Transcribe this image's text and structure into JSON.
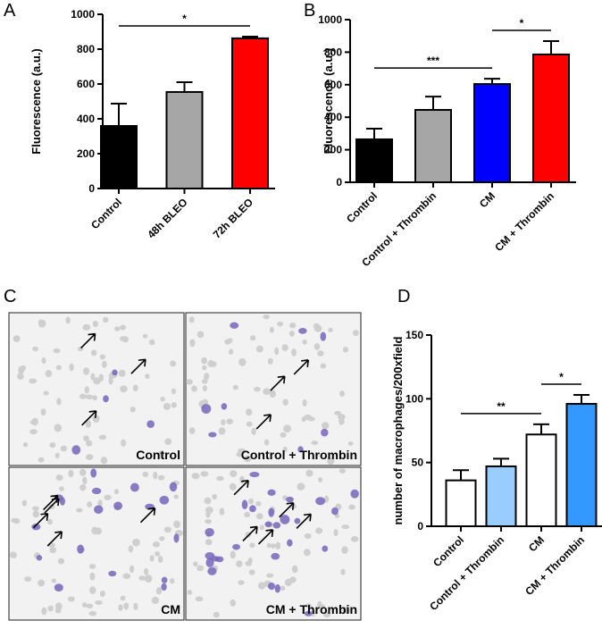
{
  "chart_data": [
    {
      "type": "bar",
      "panel": "A",
      "ylabel": "Fluorescence (a.u.)",
      "categories": [
        "Control",
        "48h BLEO",
        "72h BLEO"
      ],
      "values": [
        359,
        554,
        862
      ],
      "errors": [
        128,
        56,
        10
      ],
      "colors": [
        "#000000",
        "#a6a6a6",
        "#ff0000"
      ],
      "ylim": [
        0,
        1000
      ],
      "yticks": [
        0,
        200,
        400,
        600,
        800,
        1000
      ],
      "significance": [
        {
          "from": 0,
          "to": 2,
          "label": "*"
        }
      ]
    },
    {
      "type": "bar",
      "panel": "B",
      "ylabel": "Fluorescence (a.u.)",
      "categories": [
        "Control",
        "Control + Thrombin",
        "CM",
        "CM + Thrombin"
      ],
      "values": [
        264,
        445,
        604,
        786
      ],
      "errors": [
        66,
        82,
        33,
        82
      ],
      "colors": [
        "#000000",
        "#a6a6a6",
        "#0000ff",
        "#ff0000"
      ],
      "ylim": [
        0,
        1000
      ],
      "yticks": [
        0,
        200,
        400,
        600,
        800,
        1000
      ],
      "significance": [
        {
          "from": 0,
          "to": 2,
          "label": "***"
        },
        {
          "from": 2,
          "to": 3,
          "label": "*"
        }
      ]
    },
    {
      "type": "bar",
      "panel": "D",
      "ylabel": "number of macrophages/200xfield",
      "categories": [
        "Control",
        "Control + Thrombin",
        "CM",
        "CM + Thrombin"
      ],
      "values": [
        36,
        47,
        72,
        96
      ],
      "errors": [
        8,
        6,
        8,
        7
      ],
      "colors": [
        "#ffffff",
        "#99ccff",
        "#ffffff",
        "#3399ff"
      ],
      "ylim": [
        0,
        150
      ],
      "yticks": [
        0,
        50,
        100,
        150
      ],
      "significance": [
        {
          "from": 0,
          "to": 2,
          "label": "**"
        },
        {
          "from": 2,
          "to": 3,
          "label": "*"
        }
      ]
    }
  ],
  "micrographs": {
    "panel": "C",
    "labels": [
      "Control",
      "Control + Thrombin",
      "CM",
      "CM + Thrombin"
    ]
  }
}
